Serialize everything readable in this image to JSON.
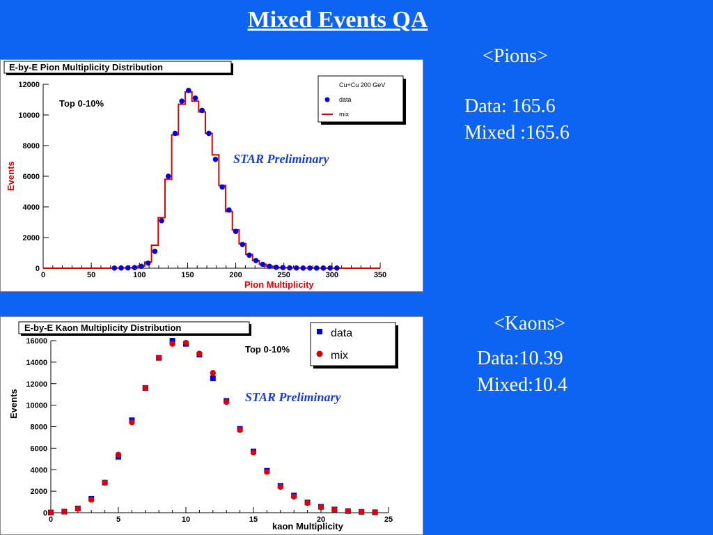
{
  "slide": {
    "title": "Mixed Events QA",
    "pions_heading": "<Pions>",
    "pions_data": "Data: 165.6",
    "pions_mixed": "Mixed :165.6",
    "kaons_heading": "<Kaons>",
    "kaons_data": "Data:10.39",
    "kaons_mixed": "Mixed:10.4"
  },
  "colors": {
    "background": "#0d63f2",
    "data": "#0000dd",
    "mix": "#dd0000",
    "axis_label": "#dd0000",
    "preliminary": "#1a3cdc"
  },
  "chart_data": [
    {
      "type": "line",
      "title": "E-by-E Pion Multiplicity Distribution",
      "xlabel": "Pion Multiplicity",
      "ylabel": "Events",
      "xlim": [
        0,
        350
      ],
      "ylim": [
        0,
        12000
      ],
      "xticks": [
        "0",
        "50",
        "100",
        "150",
        "200",
        "250",
        "300",
        "350"
      ],
      "yticks": [
        "0",
        "2000",
        "4000",
        "6000",
        "8000",
        "10000",
        "12000"
      ],
      "annotations": [
        "Top 0-10%",
        "STAR Preliminary"
      ],
      "legend": {
        "header": "Cu+Cu 200 GeV",
        "placement": "top-right",
        "entries": [
          "data",
          "mix"
        ]
      },
      "bin_width": 7,
      "series": [
        {
          "name": "data",
          "style": "markers",
          "x": [
            74,
            81,
            88,
            95,
            102,
            109,
            116,
            123,
            130,
            137,
            144,
            151,
            158,
            165,
            172,
            179,
            186,
            193,
            200,
            207,
            214,
            221,
            228,
            235,
            242,
            249,
            256,
            263,
            270,
            277,
            284,
            291,
            298,
            305
          ],
          "values": [
            10,
            15,
            20,
            40,
            120,
            330,
            1100,
            3100,
            6000,
            8800,
            10900,
            11600,
            11100,
            10300,
            8800,
            7100,
            5300,
            3800,
            2400,
            1550,
            850,
            500,
            250,
            120,
            60,
            40,
            20,
            15,
            10,
            10,
            8,
            8,
            8,
            8
          ]
        },
        {
          "name": "mix",
          "style": "step",
          "x": [
            74,
            81,
            88,
            95,
            102,
            109,
            116,
            123,
            130,
            137,
            144,
            151,
            158,
            165,
            172,
            179,
            186,
            193,
            200,
            207,
            214,
            221,
            228,
            235,
            242,
            249,
            256,
            263,
            270,
            277,
            284,
            291,
            298,
            305
          ],
          "values": [
            10,
            15,
            20,
            40,
            140,
            400,
            1500,
            3300,
            5800,
            8700,
            10700,
            11500,
            10900,
            10200,
            8800,
            7400,
            5400,
            3700,
            2500,
            1600,
            900,
            500,
            260,
            130,
            60,
            40,
            20,
            15,
            10,
            10,
            8,
            8,
            8,
            8
          ]
        }
      ]
    },
    {
      "type": "scatter",
      "title": "E-by-E Kaon Multiplicity Distribution",
      "xlabel": "kaon Multiplicity",
      "ylabel": "Events",
      "xlim": [
        0,
        25
      ],
      "ylim": [
        0,
        16000
      ],
      "xticks": [
        "0",
        "5",
        "10",
        "15",
        "20",
        "25"
      ],
      "yticks": [
        "0",
        "2000",
        "4000",
        "6000",
        "8000",
        "10000",
        "12000",
        "14000",
        "16000"
      ],
      "annotations": [
        "Top 0-10%",
        "STAR Preliminary"
      ],
      "legend": {
        "placement": "top-right",
        "entries": [
          "data",
          "mix"
        ]
      },
      "series": [
        {
          "name": "data",
          "marker": "square",
          "x": [
            0,
            1,
            2,
            3,
            4,
            5,
            6,
            7,
            8,
            9,
            10,
            11,
            12,
            13,
            14,
            15,
            16,
            17,
            18,
            19,
            20,
            21,
            22,
            23,
            24
          ],
          "values": [
            20,
            100,
            400,
            1300,
            2800,
            5200,
            8600,
            11600,
            14400,
            16000,
            15700,
            14700,
            12500,
            10400,
            7800,
            5700,
            3900,
            2500,
            1600,
            950,
            550,
            300,
            150,
            80,
            40
          ]
        },
        {
          "name": "mix",
          "marker": "circle",
          "x": [
            0,
            1,
            2,
            3,
            4,
            5,
            6,
            7,
            8,
            9,
            10,
            11,
            12,
            13,
            14,
            15,
            16,
            17,
            18,
            19,
            20,
            21,
            22,
            23,
            24
          ],
          "values": [
            20,
            100,
            380,
            1200,
            2800,
            5400,
            8400,
            11600,
            14400,
            15700,
            15800,
            14800,
            13000,
            10300,
            7700,
            5600,
            3800,
            2400,
            1500,
            900,
            500,
            280,
            150,
            80,
            40
          ]
        }
      ]
    }
  ]
}
